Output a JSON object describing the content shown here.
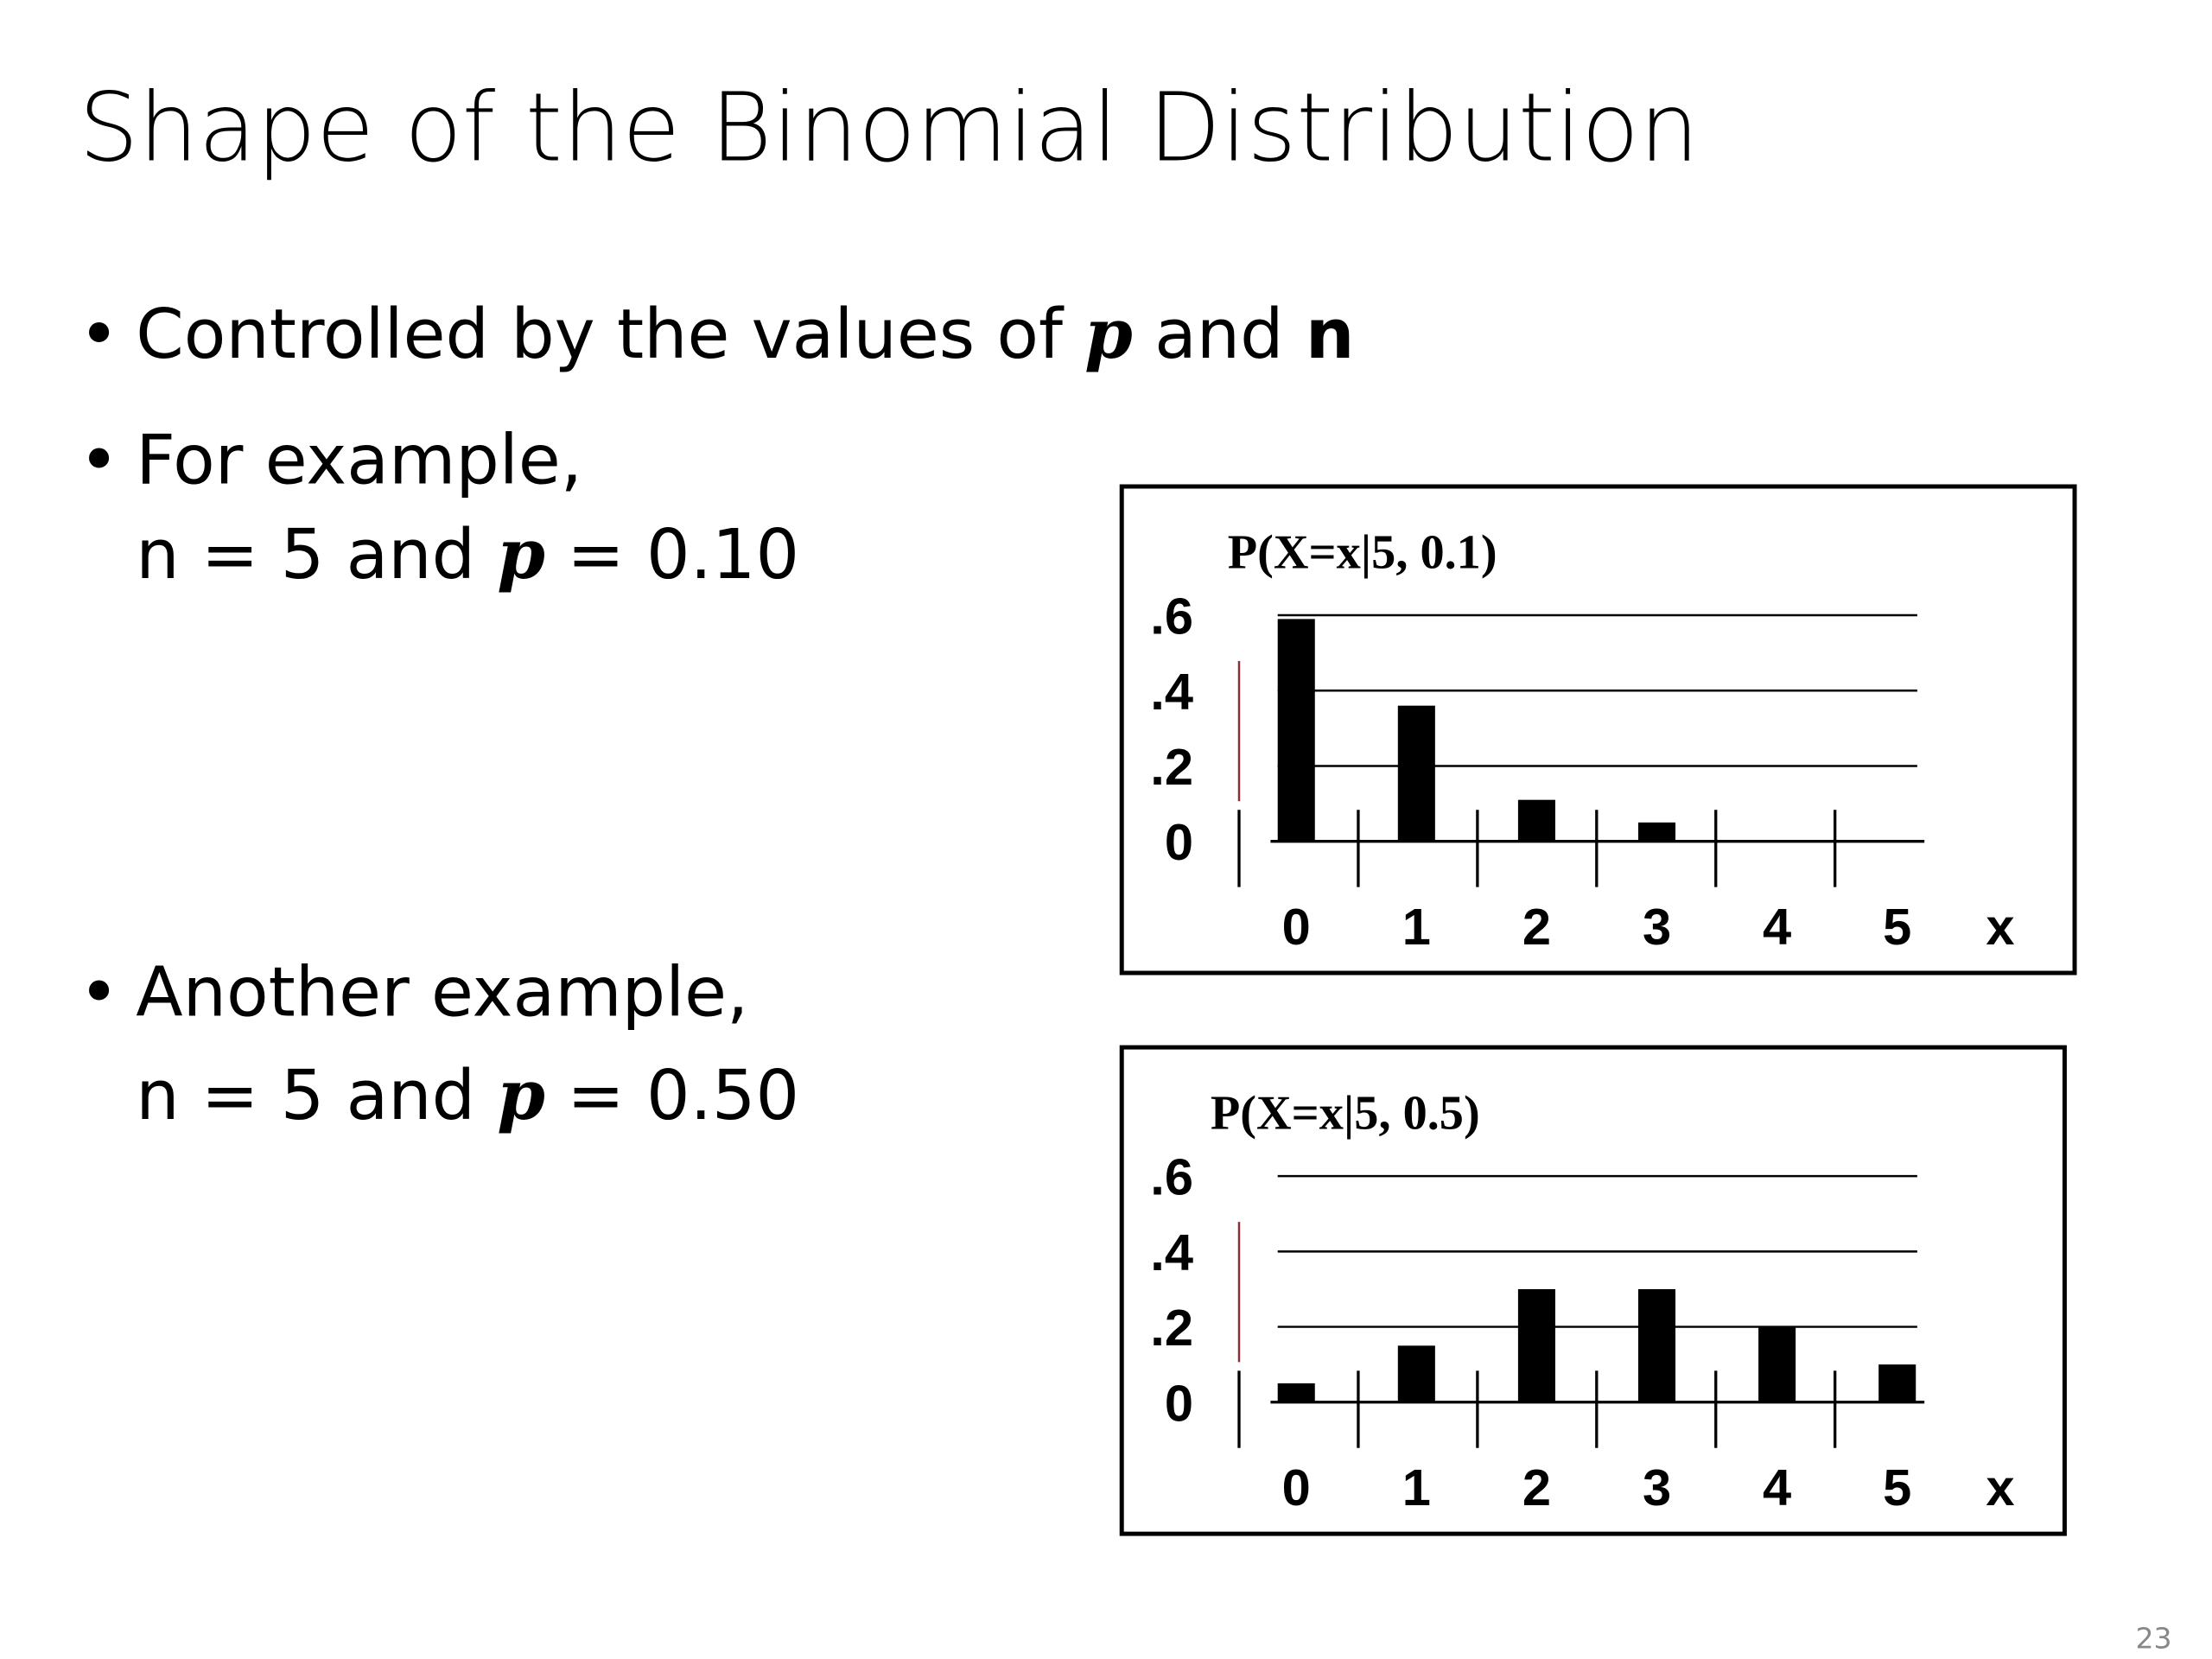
{
  "title": "Shape of the Binomial Distribution",
  "bullets": [
    {
      "lines": [
        [
          "Controlled by the values of ",
          "p",
          " and ",
          "n"
        ]
      ]
    },
    {
      "lines": [
        [
          "For example,"
        ],
        [
          "n = 5 and ",
          "p",
          " = 0.10"
        ]
      ]
    },
    {
      "lines": [
        [
          "Another example,"
        ],
        [
          "n = 5 and ",
          "p",
          " = 0.50"
        ]
      ]
    }
  ],
  "page_number": "23",
  "chart_data": [
    {
      "type": "bar",
      "title": "P(X=x|5, 0.1)",
      "xlabel": "x",
      "categories": [
        "0",
        "1",
        "2",
        "3",
        "4",
        "5"
      ],
      "values": [
        0.59,
        0.36,
        0.11,
        0.05,
        0,
        0
      ],
      "color": "#000000",
      "ylim": [
        0,
        0.6
      ],
      "yticks": [
        0,
        {
          "value": 0.2,
          "label": ".2"
        },
        {
          "value": 0.4,
          "label": ".4"
        },
        {
          "value": 0.6,
          "label": ".6"
        }
      ],
      "grid": true
    },
    {
      "type": "bar",
      "title": "P(X=x|5, 0.5)",
      "xlabel": "x",
      "categories": [
        "0",
        "1",
        "2",
        "3",
        "4",
        "5"
      ],
      "values": [
        0.05,
        0.15,
        0.3,
        0.3,
        0.2,
        0.1
      ],
      "color": "#000000",
      "ylim": [
        0,
        0.6
      ],
      "yticks": [
        0,
        {
          "value": 0.2,
          "label": ".2"
        },
        {
          "value": 0.4,
          "label": ".4"
        },
        {
          "value": 0.6,
          "label": ".6"
        }
      ],
      "grid": true
    }
  ]
}
